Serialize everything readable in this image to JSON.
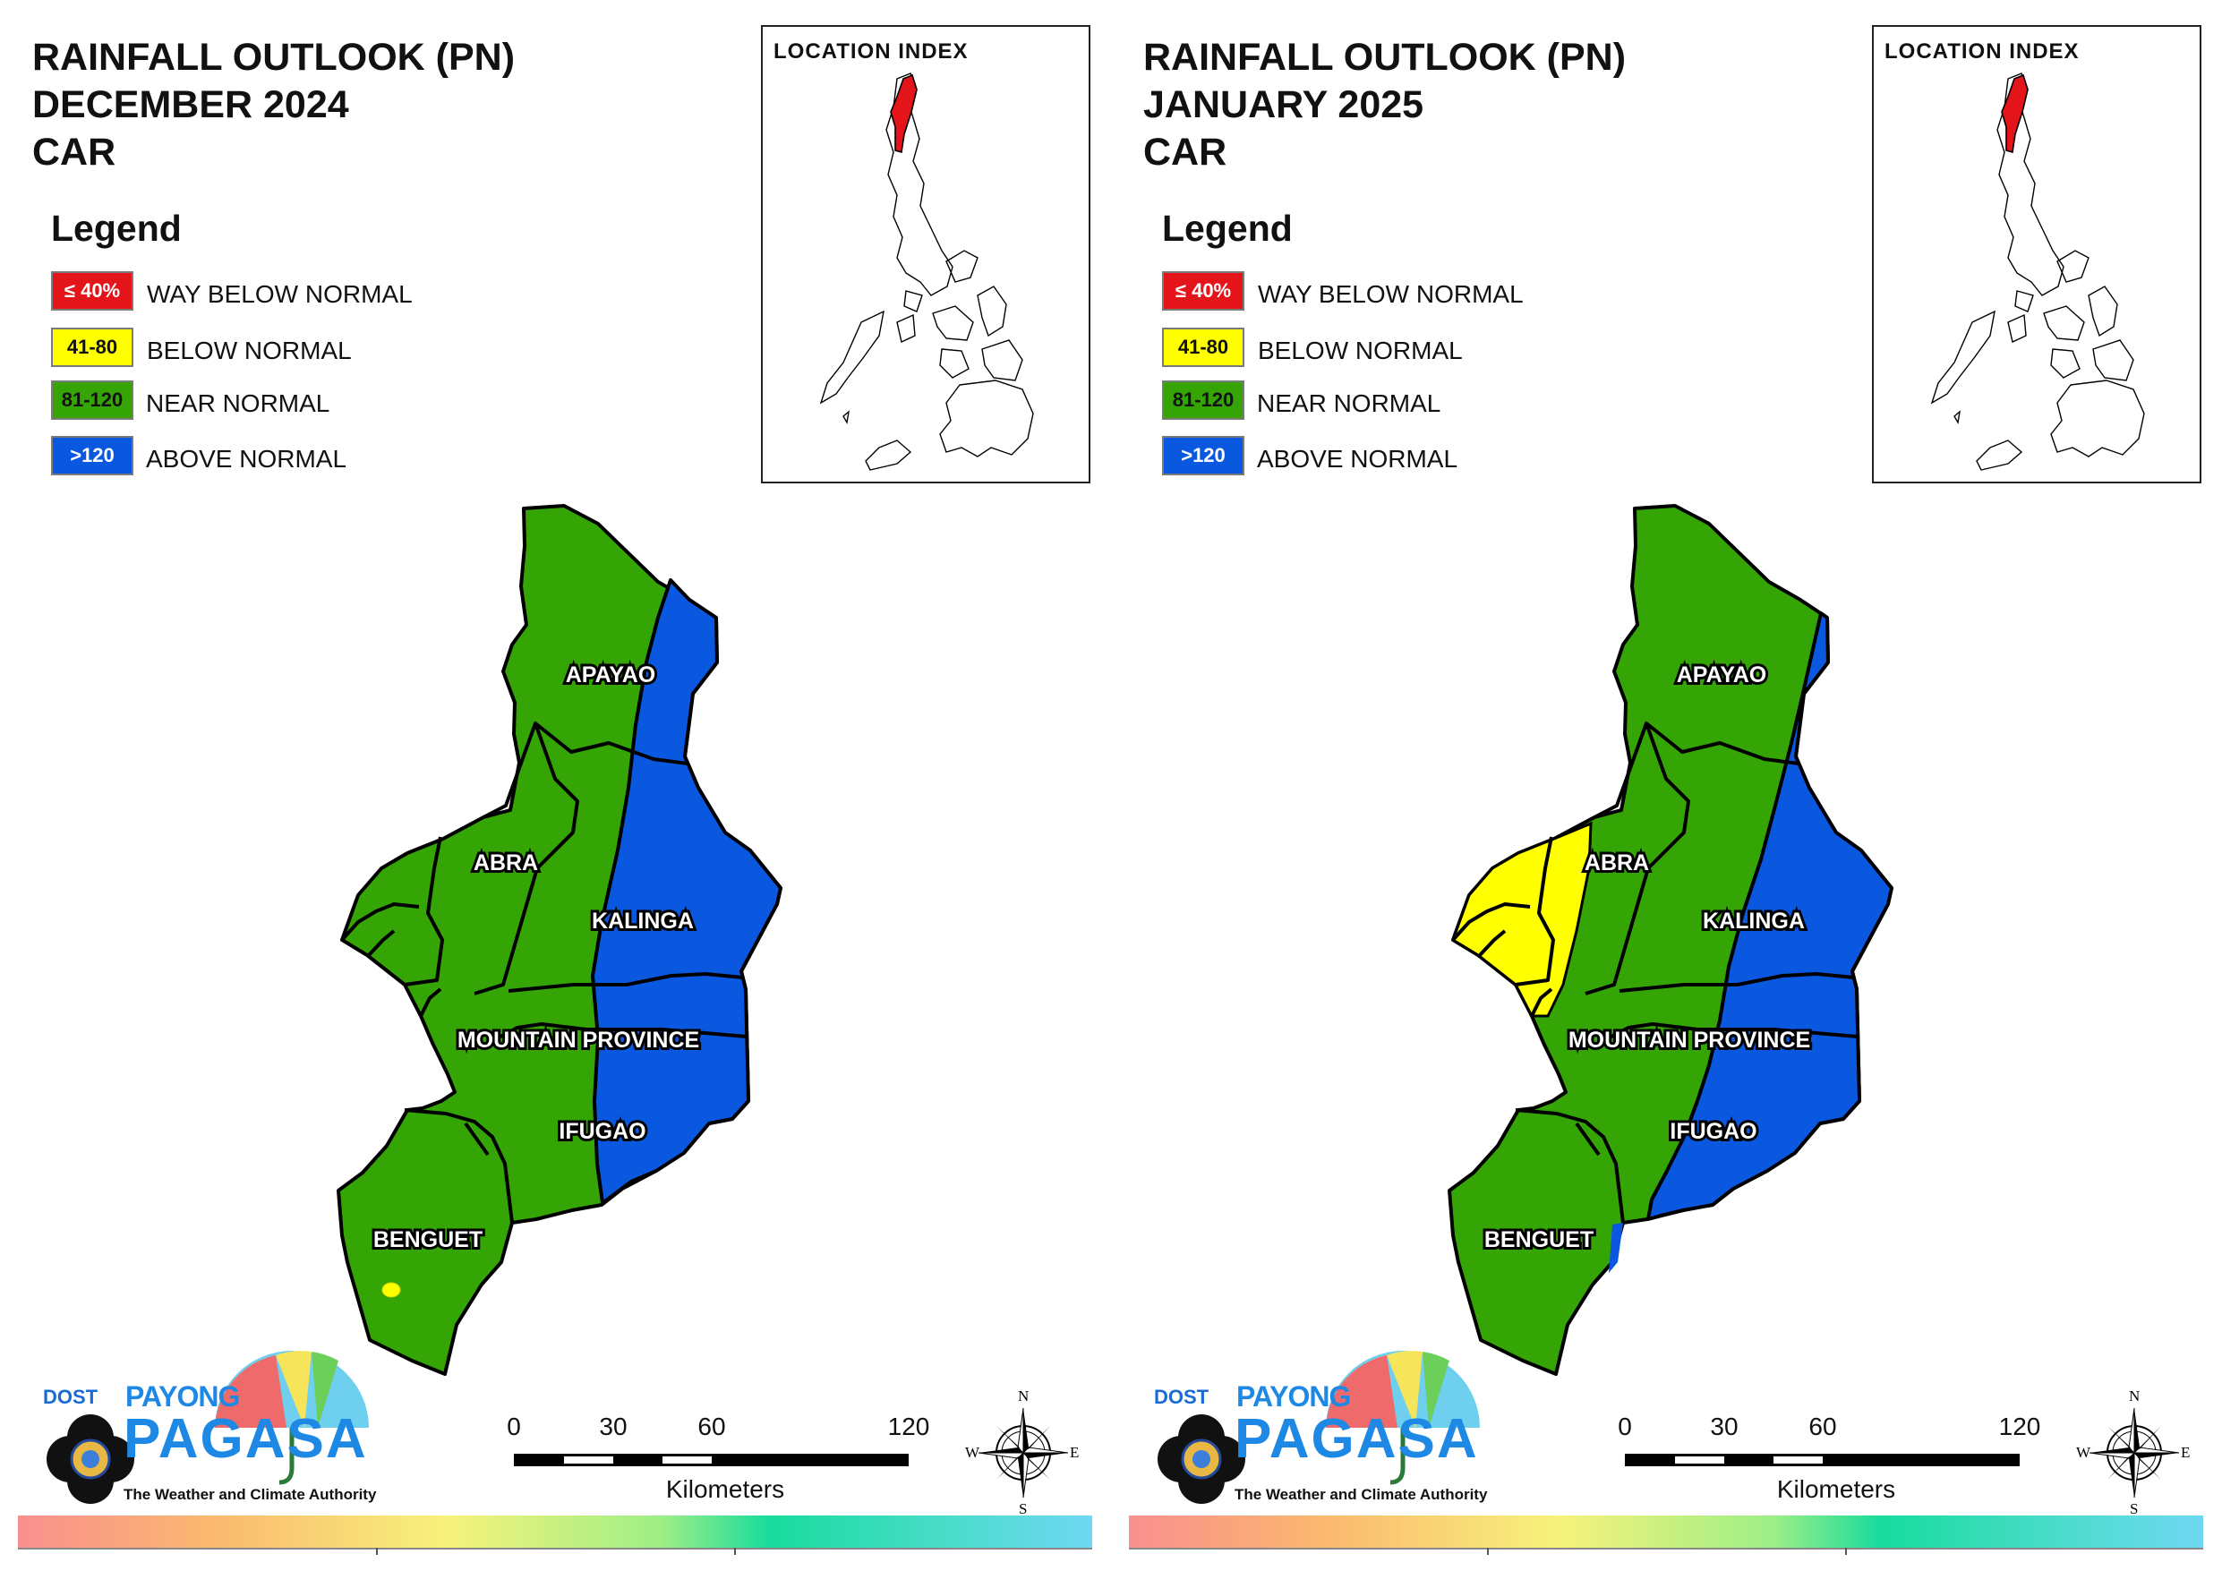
{
  "colors": {
    "way_below": "#e4141b",
    "below": "#ffff00",
    "near": "#34a505",
    "above": "#0a58e0",
    "border": "#000000"
  },
  "legend": {
    "heading": "Legend",
    "items": [
      {
        "range": "≤ 40%",
        "label": "WAY BELOW NORMAL"
      },
      {
        "range": "41-80",
        "label": "BELOW NORMAL"
      },
      {
        "range": "81-120",
        "label": "NEAR NORMAL"
      },
      {
        "range": ">120",
        "label": "ABOVE NORMAL"
      }
    ]
  },
  "location_index_title": "LOCATION INDEX",
  "provinces": [
    "APAYAO",
    "ABRA",
    "KALINGA",
    "MOUNTAIN PROVINCE",
    "IFUGAO",
    "BENGUET"
  ],
  "scale": {
    "ticks": [
      "0",
      "30",
      "60",
      "120"
    ],
    "unit": "Kilometers"
  },
  "compass": {
    "n": "N",
    "s": "S",
    "e": "E",
    "w": "W"
  },
  "logo": {
    "dost": "DOST",
    "payong": "PAYONG",
    "pagasa": "PAGASA",
    "tagline": "The Weather and Climate Authority"
  },
  "panels": [
    {
      "title_line1": "RAINFALL OUTLOOK (PN)",
      "title_line2": "DECEMBER 2024",
      "title_line3": "CAR",
      "abra_yellow_zone": false,
      "benguet_yellow_spot": true,
      "benguet_blue_strip": false
    },
    {
      "title_line1": "RAINFALL OUTLOOK (PN)",
      "title_line2": "JANUARY 2025",
      "title_line3": "CAR",
      "abra_yellow_zone": true,
      "benguet_yellow_spot": false,
      "benguet_blue_strip": true
    }
  ]
}
